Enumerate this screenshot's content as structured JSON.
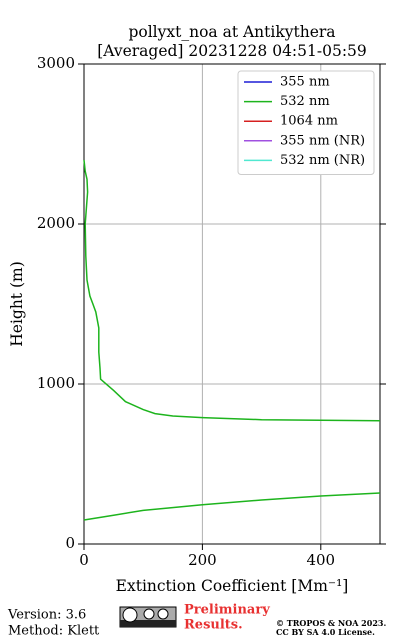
{
  "chart_data": {
    "type": "line",
    "title": [
      "pollyxt_noa at Antikythera",
      "[Averaged] 20231228 04:51-05:59"
    ],
    "xlabel": "Extinction Coefficient [Mm⁻¹]",
    "ylabel": "Height (m)",
    "xlim": [
      0,
      500
    ],
    "ylim": [
      0,
      3000
    ],
    "xticks": [
      0,
      200,
      400
    ],
    "yticks": [
      0,
      1000,
      2000,
      3000
    ],
    "grid": true,
    "legend": "upper-right",
    "series": [
      {
        "name": "355 nm",
        "color": "#1f1fd6",
        "x": [],
        "y": []
      },
      {
        "name": "532 nm",
        "color": "#1db41d",
        "x": [
          0,
          50,
          100,
          200,
          300,
          400,
          500,
          null,
          500,
          300,
          200,
          150,
          120,
          100,
          70,
          50,
          28,
          27,
          25,
          25,
          20,
          15,
          10,
          5,
          3,
          2,
          4,
          6,
          5,
          2,
          0
        ],
        "y": [
          150,
          180,
          210,
          245,
          275,
          300,
          319,
          null,
          770,
          777,
          790,
          800,
          815,
          840,
          890,
          960,
          1030,
          1100,
          1200,
          1350,
          1450,
          1500,
          1550,
          1650,
          1800,
          2000,
          2100,
          2200,
          2280,
          2330,
          2400
        ]
      },
      {
        "name": "1064 nm",
        "color": "#d62020",
        "x": [],
        "y": []
      },
      {
        "name": "355 nm (NR)",
        "color": "#a050e0",
        "x": [],
        "y": []
      },
      {
        "name": "532 nm (NR)",
        "color": "#50e8d0",
        "x": [],
        "y": []
      }
    ]
  },
  "footer": {
    "version": "Version: 3.6",
    "method": "Method: Klett",
    "preliminary": [
      "Preliminary",
      "Results."
    ],
    "copyright": [
      "© TROPOS & NOA 2023.",
      "CC BY SA 4.0 License."
    ]
  }
}
